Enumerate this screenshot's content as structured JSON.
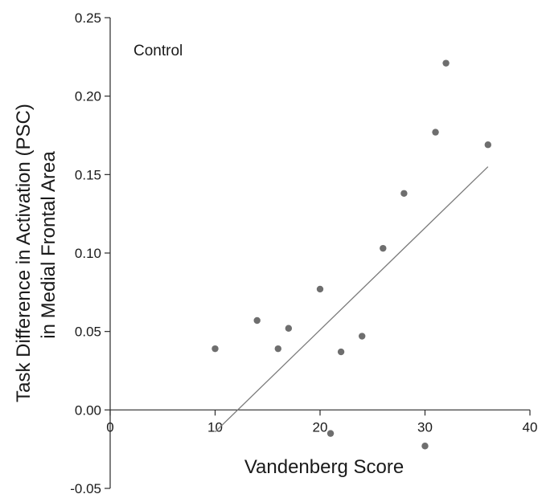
{
  "chart_data": {
    "type": "scatter",
    "title": "",
    "annotation": "Control",
    "xlabel": "Vandenberg Score",
    "ylabel_lines": [
      "Task Difference in Activation (PSC)",
      "in Medial Frontal Area"
    ],
    "xlim": [
      0,
      40
    ],
    "ylim": [
      -0.05,
      0.25
    ],
    "x_ticks": [
      0,
      10,
      20,
      30,
      40
    ],
    "x_tick_labels": [
      "0",
      "10",
      "20",
      "30",
      "40"
    ],
    "y_ticks": [
      -0.05,
      0.0,
      0.05,
      0.1,
      0.15,
      0.2,
      0.25
    ],
    "y_tick_labels": [
      "-0.05",
      "0.00",
      "0.05",
      "0.10",
      "0.15",
      "0.20",
      "0.25"
    ],
    "grid": false,
    "points": [
      {
        "x": 10,
        "y": 0.039
      },
      {
        "x": 14,
        "y": 0.057
      },
      {
        "x": 16,
        "y": 0.039
      },
      {
        "x": 17,
        "y": 0.052
      },
      {
        "x": 20,
        "y": 0.077
      },
      {
        "x": 21,
        "y": -0.015
      },
      {
        "x": 22,
        "y": 0.037
      },
      {
        "x": 24,
        "y": 0.047
      },
      {
        "x": 26,
        "y": 0.103
      },
      {
        "x": 28,
        "y": 0.138
      },
      {
        "x": 30,
        "y": -0.023
      },
      {
        "x": 31,
        "y": 0.177
      },
      {
        "x": 32,
        "y": 0.221
      },
      {
        "x": 36,
        "y": 0.169
      }
    ],
    "fit_line": {
      "x1": 10,
      "y1": -0.014,
      "x2": 36,
      "y2": 0.155
    },
    "colors": {
      "point": "#6e6e6e",
      "line": "#7a7a7a",
      "axis": "#2a2a2a"
    }
  }
}
